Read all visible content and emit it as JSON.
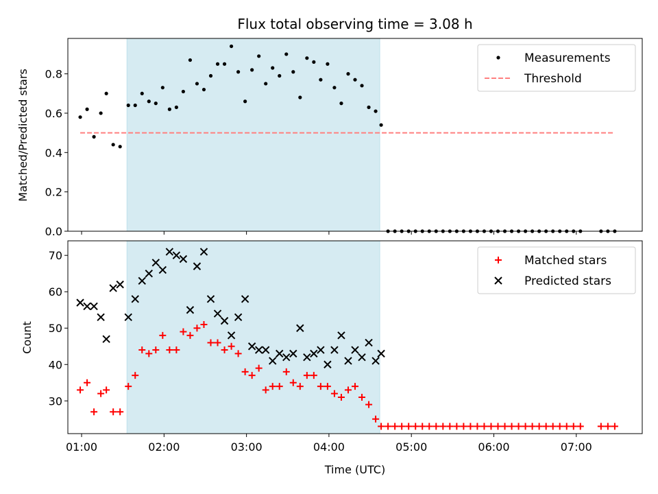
{
  "chart_data": [
    {
      "type": "scatter",
      "title": "Flux total observing time = 3.08 h",
      "xlabel": "",
      "ylabel": "Matched/Predicted stars",
      "xlim": [
        "00:50",
        "07:48"
      ],
      "ylim": [
        0,
        0.98
      ],
      "xticks": [
        "01:00",
        "02:00",
        "03:00",
        "04:00",
        "05:00",
        "06:00",
        "07:00"
      ],
      "yticks": [
        "0.0",
        "0.2",
        "0.4",
        "0.6",
        "0.8"
      ],
      "shaded_span": [
        "01:33",
        "04:37"
      ],
      "grid": false,
      "legend_position": "top-right",
      "series": [
        {
          "name": "Measurements",
          "marker": "dot",
          "color": "#000000",
          "x": [
            "00:59",
            "01:04",
            "01:09",
            "01:14",
            "01:18",
            "01:23",
            "01:28",
            "01:34",
            "01:39",
            "01:44",
            "01:49",
            "01:54",
            "01:59",
            "02:04",
            "02:09",
            "02:14",
            "02:19",
            "02:24",
            "02:29",
            "02:34",
            "02:39",
            "02:44",
            "02:49",
            "02:54",
            "02:59",
            "03:04",
            "03:09",
            "03:14",
            "03:19",
            "03:24",
            "03:29",
            "03:34",
            "03:39",
            "03:44",
            "03:49",
            "03:54",
            "03:59",
            "04:04",
            "04:09",
            "04:14",
            "04:19",
            "04:24",
            "04:29",
            "04:34",
            "04:38",
            "04:43",
            "04:48",
            "04:53",
            "04:58",
            "05:03",
            "05:08",
            "05:13",
            "05:18",
            "05:23",
            "05:28",
            "05:33",
            "05:38",
            "05:43",
            "05:48",
            "05:53",
            "05:58",
            "06:03",
            "06:08",
            "06:13",
            "06:18",
            "06:23",
            "06:28",
            "06:33",
            "06:38",
            "06:43",
            "06:48",
            "06:53",
            "06:58",
            "07:03",
            "07:18",
            "07:23",
            "07:28"
          ],
          "y": [
            0.58,
            0.62,
            0.48,
            0.6,
            0.7,
            0.44,
            0.43,
            0.64,
            0.64,
            0.7,
            0.66,
            0.65,
            0.73,
            0.62,
            0.63,
            0.71,
            0.87,
            0.75,
            0.72,
            0.79,
            0.85,
            0.85,
            0.94,
            0.81,
            0.66,
            0.82,
            0.89,
            0.75,
            0.83,
            0.79,
            0.9,
            0.81,
            0.68,
            0.88,
            0.86,
            0.77,
            0.85,
            0.73,
            0.65,
            0.8,
            0.77,
            0.74,
            0.63,
            0.61,
            0.54,
            0,
            0,
            0,
            0,
            0,
            0,
            0,
            0,
            0,
            0,
            0,
            0,
            0,
            0,
            0,
            0,
            0,
            0,
            0,
            0,
            0,
            0,
            0,
            0,
            0,
            0,
            0,
            0,
            0,
            0,
            0,
            0
          ]
        },
        {
          "name": "Threshold",
          "marker": "dashed-line",
          "color": "#ff7f7f",
          "x": [
            "00:59",
            "07:28"
          ],
          "y": [
            0.5,
            0.5
          ]
        }
      ]
    },
    {
      "type": "scatter",
      "title": "",
      "xlabel": "Time (UTC)",
      "ylabel": "Count",
      "xlim": [
        "00:50",
        "07:48"
      ],
      "ylim": [
        21,
        74
      ],
      "xticks": [
        "01:00",
        "02:00",
        "03:00",
        "04:00",
        "05:00",
        "06:00",
        "07:00"
      ],
      "yticks": [
        "30",
        "40",
        "50",
        "60",
        "70"
      ],
      "shaded_span": [
        "01:33",
        "04:37"
      ],
      "grid": false,
      "legend_position": "top-right",
      "series": [
        {
          "name": "Matched stars",
          "marker": "plus",
          "color": "#ff0000",
          "x": [
            "00:59",
            "01:04",
            "01:09",
            "01:14",
            "01:18",
            "01:23",
            "01:28",
            "01:34",
            "01:39",
            "01:44",
            "01:49",
            "01:54",
            "01:59",
            "02:04",
            "02:09",
            "02:14",
            "02:19",
            "02:24",
            "02:29",
            "02:34",
            "02:39",
            "02:44",
            "02:49",
            "02:54",
            "02:59",
            "03:04",
            "03:09",
            "03:14",
            "03:19",
            "03:24",
            "03:29",
            "03:34",
            "03:39",
            "03:44",
            "03:49",
            "03:54",
            "03:59",
            "04:04",
            "04:09",
            "04:14",
            "04:19",
            "04:24",
            "04:29",
            "04:34",
            "04:38",
            "04:43",
            "04:48",
            "04:53",
            "04:58",
            "05:03",
            "05:08",
            "05:13",
            "05:18",
            "05:23",
            "05:28",
            "05:33",
            "05:38",
            "05:43",
            "05:48",
            "05:53",
            "05:58",
            "06:03",
            "06:08",
            "06:13",
            "06:18",
            "06:23",
            "06:28",
            "06:33",
            "06:38",
            "06:43",
            "06:48",
            "06:53",
            "06:58",
            "07:03",
            "07:18",
            "07:23",
            "07:28"
          ],
          "y": [
            33,
            35,
            27,
            32,
            33,
            27,
            27,
            34,
            37,
            44,
            43,
            44,
            48,
            44,
            44,
            49,
            48,
            50,
            51,
            46,
            46,
            44,
            45,
            43,
            38,
            37,
            39,
            33,
            34,
            34,
            38,
            35,
            34,
            37,
            37,
            34,
            34,
            32,
            31,
            33,
            34,
            31,
            29,
            25,
            23,
            23,
            23,
            23,
            23,
            23,
            23,
            23,
            23,
            23,
            23,
            23,
            23,
            23,
            23,
            23,
            23,
            23,
            23,
            23,
            23,
            23,
            23,
            23,
            23,
            23,
            23,
            23,
            23,
            23,
            23,
            23,
            23
          ]
        },
        {
          "name": "Predicted stars",
          "marker": "x",
          "color": "#000000",
          "x": [
            "00:59",
            "01:04",
            "01:09",
            "01:14",
            "01:18",
            "01:23",
            "01:28",
            "01:34",
            "01:39",
            "01:44",
            "01:49",
            "01:54",
            "01:59",
            "02:04",
            "02:09",
            "02:14",
            "02:19",
            "02:24",
            "02:29",
            "02:34",
            "02:39",
            "02:44",
            "02:49",
            "02:54",
            "02:59",
            "03:04",
            "03:09",
            "03:14",
            "03:19",
            "03:24",
            "03:29",
            "03:34",
            "03:39",
            "03:44",
            "03:49",
            "03:54",
            "03:59",
            "04:04",
            "04:09",
            "04:14",
            "04:19",
            "04:24",
            "04:29",
            "04:34",
            "04:38"
          ],
          "y": [
            57,
            56,
            56,
            53,
            47,
            61,
            62,
            53,
            58,
            63,
            65,
            68,
            66,
            71,
            70,
            69,
            55,
            67,
            71,
            58,
            54,
            52,
            48,
            53,
            58,
            45,
            44,
            44,
            41,
            43,
            42,
            43,
            50,
            42,
            43,
            44,
            40,
            44,
            48,
            41,
            44,
            42,
            46,
            41,
            43
          ]
        }
      ]
    }
  ]
}
